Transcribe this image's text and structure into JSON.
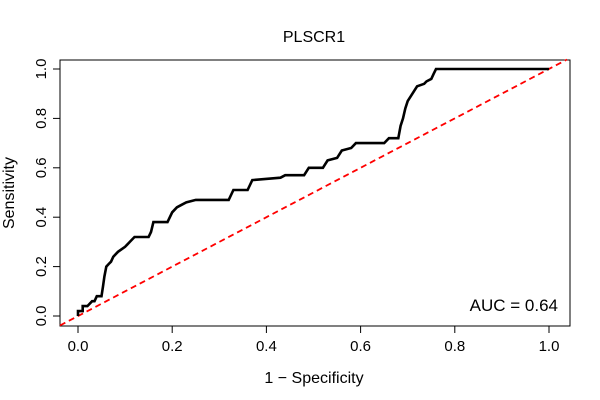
{
  "chart_data": {
    "type": "line",
    "title": "PLSCR1",
    "xlabel": "1 − Specificity",
    "ylabel": "Sensitivity",
    "xlim": [
      0.0,
      1.0
    ],
    "ylim": [
      0.0,
      1.0
    ],
    "x_ticks": [
      "0.0",
      "0.2",
      "0.4",
      "0.6",
      "0.8",
      "1.0"
    ],
    "y_ticks": [
      "0.0",
      "0.2",
      "0.4",
      "0.6",
      "0.8",
      "1.0"
    ],
    "grid": false,
    "annotation": "AUC = 0.64",
    "colors": {
      "roc": "#000000",
      "diagonal": "#ff0000"
    },
    "series": [
      {
        "points": [
          [
            0.0,
            0.0
          ],
          [
            0.0,
            0.02
          ],
          [
            0.01,
            0.02
          ],
          [
            0.01,
            0.04
          ],
          [
            0.02,
            0.04
          ],
          [
            0.03,
            0.06
          ],
          [
            0.035,
            0.06
          ],
          [
            0.04,
            0.08
          ],
          [
            0.05,
            0.08
          ],
          [
            0.053,
            0.12
          ],
          [
            0.056,
            0.16
          ],
          [
            0.06,
            0.2
          ],
          [
            0.065,
            0.21
          ],
          [
            0.07,
            0.22
          ],
          [
            0.075,
            0.24
          ],
          [
            0.085,
            0.26
          ],
          [
            0.1,
            0.28
          ],
          [
            0.11,
            0.3
          ],
          [
            0.12,
            0.32
          ],
          [
            0.15,
            0.32
          ],
          [
            0.155,
            0.34
          ],
          [
            0.16,
            0.38
          ],
          [
            0.19,
            0.38
          ],
          [
            0.2,
            0.42
          ],
          [
            0.21,
            0.44
          ],
          [
            0.22,
            0.45
          ],
          [
            0.23,
            0.46
          ],
          [
            0.25,
            0.47
          ],
          [
            0.32,
            0.47
          ],
          [
            0.33,
            0.51
          ],
          [
            0.36,
            0.51
          ],
          [
            0.37,
            0.55
          ],
          [
            0.43,
            0.56
          ],
          [
            0.44,
            0.57
          ],
          [
            0.48,
            0.57
          ],
          [
            0.49,
            0.6
          ],
          [
            0.52,
            0.6
          ],
          [
            0.53,
            0.63
          ],
          [
            0.55,
            0.64
          ],
          [
            0.56,
            0.67
          ],
          [
            0.58,
            0.68
          ],
          [
            0.59,
            0.7
          ],
          [
            0.65,
            0.7
          ],
          [
            0.66,
            0.72
          ],
          [
            0.68,
            0.72
          ],
          [
            0.685,
            0.77
          ],
          [
            0.69,
            0.8
          ],
          [
            0.695,
            0.84
          ],
          [
            0.7,
            0.87
          ],
          [
            0.71,
            0.9
          ],
          [
            0.72,
            0.93
          ],
          [
            0.735,
            0.94
          ],
          [
            0.74,
            0.95
          ],
          [
            0.75,
            0.96
          ],
          [
            0.755,
            0.98
          ],
          [
            0.76,
            1.0
          ],
          [
            1.0,
            1.0
          ]
        ]
      }
    ],
    "diagonal": [
      [
        0.0,
        0.0
      ],
      [
        1.0,
        1.0
      ]
    ]
  }
}
